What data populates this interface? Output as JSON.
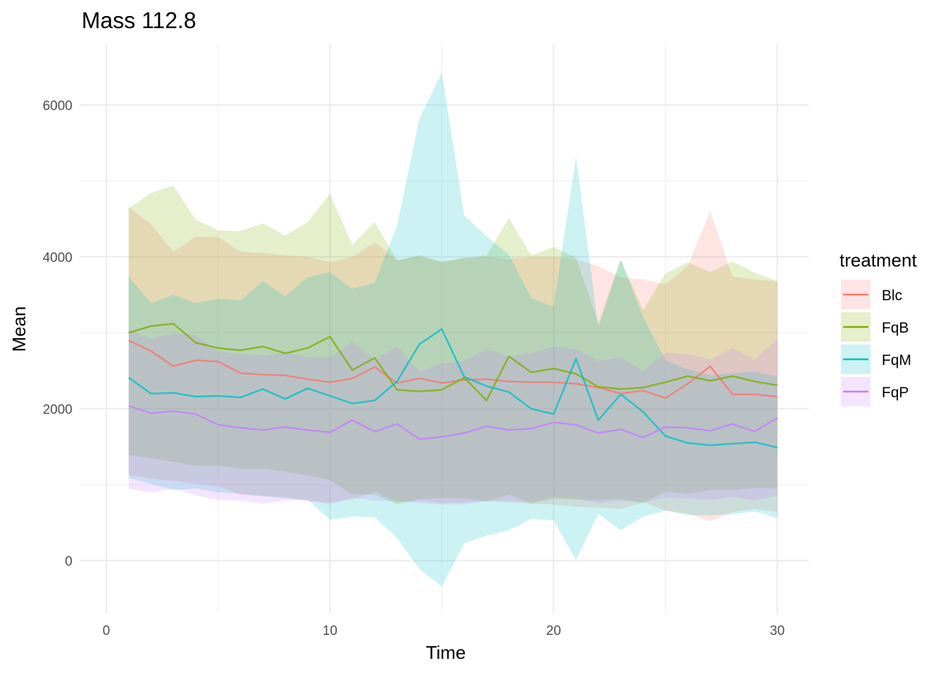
{
  "chart_data": {
    "type": "line",
    "title": "Mass 112.8",
    "xlabel": "Time",
    "ylabel": "Mean",
    "xlim": [
      -1.2,
      31.4
    ],
    "ylim": [
      -700,
      6800
    ],
    "x_ticks": [
      0,
      10,
      20,
      30
    ],
    "x_tick_labels": [
      "0",
      "10",
      "20",
      "30"
    ],
    "y_ticks": [
      0,
      2000,
      4000,
      6000
    ],
    "y_tick_labels": [
      "0",
      "2000",
      "4000",
      "6000"
    ],
    "grid": true,
    "legend_title": "treatment",
    "legend_position": "right",
    "x": [
      1,
      2,
      3,
      4,
      5,
      6,
      7,
      8,
      9,
      10,
      11,
      12,
      13,
      14,
      15,
      16,
      17,
      18,
      19,
      20,
      21,
      22,
      23,
      24,
      25,
      26,
      27,
      28,
      29,
      30
    ],
    "series": [
      {
        "name": "Blc",
        "color": "#F8766D",
        "values": [
          2900,
          2760,
          2560,
          2640,
          2620,
          2470,
          2450,
          2440,
          2390,
          2350,
          2400,
          2550,
          2340,
          2400,
          2340,
          2380,
          2390,
          2360,
          2350,
          2350,
          2330,
          2280,
          2200,
          2240,
          2140,
          2330,
          2560,
          2190,
          2190,
          2160
        ],
        "upper": [
          4660,
          4430,
          4070,
          4270,
          4260,
          4070,
          4050,
          4020,
          4000,
          3930,
          4000,
          4190,
          3960,
          4010,
          3930,
          3990,
          4000,
          3970,
          4000,
          4000,
          3970,
          3880,
          3730,
          3700,
          3640,
          3880,
          4600,
          3740,
          3700,
          3680
        ],
        "lower": [
          1130,
          1080,
          1050,
          1010,
          980,
          870,
          850,
          840,
          780,
          770,
          800,
          910,
          770,
          790,
          760,
          770,
          780,
          770,
          750,
          740,
          710,
          700,
          680,
          770,
          660,
          620,
          520,
          640,
          680,
          640
        ]
      },
      {
        "name": "FqB",
        "color": "#7CAE00",
        "values": [
          3000,
          3090,
          3120,
          2870,
          2800,
          2770,
          2820,
          2730,
          2800,
          2950,
          2510,
          2670,
          2250,
          2230,
          2250,
          2410,
          2110,
          2690,
          2480,
          2530,
          2460,
          2290,
          2260,
          2280,
          2350,
          2430,
          2370,
          2430,
          2360,
          2310
        ],
        "upper": [
          4640,
          4840,
          4940,
          4490,
          4350,
          4340,
          4440,
          4280,
          4460,
          4830,
          4160,
          4460,
          3950,
          4020,
          3940,
          3980,
          4020,
          4510,
          4020,
          4130,
          3990,
          3130,
          3970,
          3300,
          3780,
          3930,
          3800,
          3940,
          3790,
          3680
        ],
        "lower": [
          1390,
          1350,
          1300,
          1250,
          1250,
          1210,
          1210,
          1170,
          1120,
          1060,
          870,
          870,
          740,
          810,
          820,
          820,
          780,
          870,
          750,
          820,
          800,
          800,
          810,
          760,
          910,
          880,
          930,
          930,
          960,
          950
        ]
      },
      {
        "name": "FqM",
        "color": "#00BFC4",
        "values": [
          2410,
          2200,
          2210,
          2160,
          2170,
          2150,
          2260,
          2130,
          2270,
          2170,
          2070,
          2110,
          2360,
          2850,
          3050,
          2420,
          2300,
          2220,
          2000,
          1930,
          2660,
          1850,
          2190,
          1960,
          1640,
          1550,
          1520,
          1540,
          1560,
          1490
        ],
        "upper": [
          3740,
          3390,
          3500,
          3390,
          3450,
          3430,
          3680,
          3480,
          3730,
          3800,
          3580,
          3660,
          4410,
          5820,
          6430,
          4550,
          4270,
          4030,
          3460,
          3340,
          5320,
          3070,
          3960,
          3210,
          2640,
          2520,
          2440,
          2470,
          2490,
          2420
        ],
        "lower": [
          1090,
          1010,
          930,
          950,
          900,
          880,
          850,
          820,
          800,
          540,
          580,
          570,
          300,
          -110,
          -340,
          230,
          330,
          400,
          550,
          530,
          10,
          620,
          400,
          580,
          660,
          600,
          600,
          610,
          650,
          560
        ]
      },
      {
        "name": "FqP",
        "color": "#C77CFF",
        "values": [
          2040,
          1940,
          1970,
          1930,
          1790,
          1750,
          1720,
          1760,
          1720,
          1690,
          1850,
          1700,
          1800,
          1600,
          1630,
          1680,
          1770,
          1720,
          1740,
          1820,
          1790,
          1680,
          1730,
          1620,
          1760,
          1750,
          1710,
          1800,
          1700,
          1880
        ],
        "upper": [
          3040,
          2920,
          2990,
          2970,
          2750,
          2720,
          2700,
          2740,
          2680,
          2680,
          2880,
          2650,
          2820,
          2490,
          2600,
          2630,
          2780,
          2690,
          2740,
          2820,
          2790,
          2630,
          2680,
          2500,
          2740,
          2720,
          2650,
          2800,
          2650,
          2920
        ],
        "lower": [
          950,
          900,
          950,
          860,
          800,
          790,
          750,
          790,
          800,
          740,
          830,
          790,
          790,
          760,
          740,
          740,
          790,
          790,
          770,
          840,
          820,
          760,
          790,
          770,
          830,
          820,
          800,
          840,
          790,
          860
        ]
      }
    ]
  }
}
